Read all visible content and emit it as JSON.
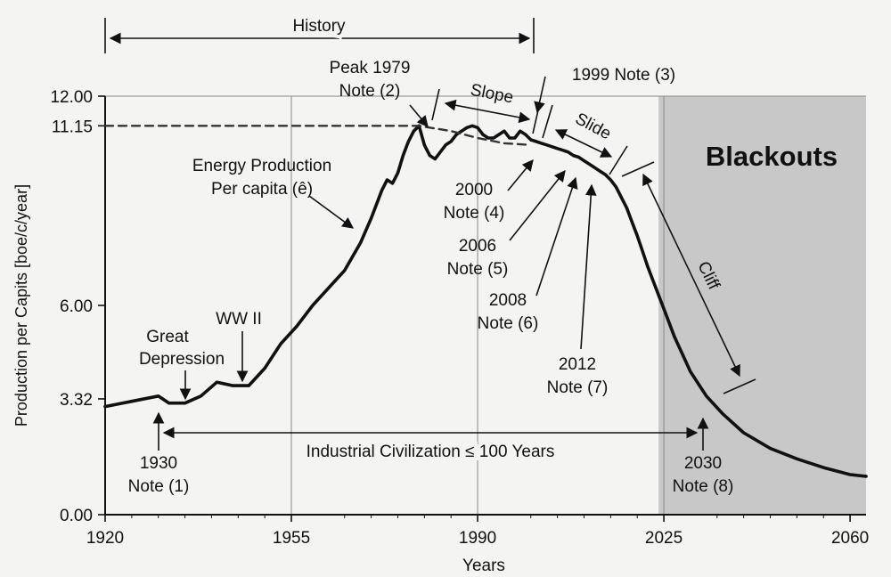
{
  "chart_data": {
    "type": "line",
    "title": "",
    "xlabel": "Years",
    "ylabel": "Production per Capits [boe/c/year]",
    "xlim": [
      1920,
      2063
    ],
    "ylim": [
      0,
      12
    ],
    "x_ticks": [
      {
        "value": 1920,
        "label": "1920"
      },
      {
        "value": 1955,
        "label": "1955"
      },
      {
        "value": 1990,
        "label": "1990"
      },
      {
        "value": 2025,
        "label": "2025"
      },
      {
        "value": 2060,
        "label": "2060"
      }
    ],
    "y_ticks": [
      {
        "value": 0,
        "label": "0.00"
      },
      {
        "value": 3.32,
        "label": "3.32"
      },
      {
        "value": 6,
        "label": "6.00"
      },
      {
        "value": 11.15,
        "label": "11.15"
      },
      {
        "value": 12,
        "label": "12.00"
      }
    ],
    "grid": "vertical lines at 1955, 1990, 2025; horizontal line at 12.00",
    "series": [
      {
        "name": "Energy Production Per capita (ê)",
        "x": [
          1920,
          1925,
          1930,
          1932,
          1935,
          1938,
          1941,
          1944,
          1947,
          1950,
          1953,
          1956,
          1959,
          1962,
          1965,
          1968,
          1970,
          1972,
          1973,
          1974,
          1975,
          1976,
          1977,
          1978,
          1979,
          1980,
          1981,
          1982,
          1983,
          1984,
          1985,
          1986,
          1987,
          1988,
          1989,
          1990,
          1991,
          1992,
          1993,
          1994,
          1995,
          1996,
          1997,
          1998,
          1999,
          2000,
          2001,
          2002,
          2003,
          2004,
          2005,
          2006,
          2007,
          2008,
          2009,
          2010,
          2011,
          2012,
          2013,
          2014,
          2015,
          2016,
          2017,
          2018,
          2019,
          2020,
          2021,
          2022,
          2023,
          2024,
          2025,
          2027,
          2030,
          2033,
          2036,
          2040,
          2045,
          2050,
          2055,
          2060,
          2063
        ],
        "y": [
          3.1,
          3.25,
          3.4,
          3.2,
          3.2,
          3.4,
          3.8,
          3.7,
          3.7,
          4.2,
          4.9,
          5.4,
          6.0,
          6.5,
          7.0,
          7.8,
          8.5,
          9.3,
          9.6,
          9.5,
          9.8,
          10.3,
          10.7,
          11.0,
          11.15,
          10.6,
          10.3,
          10.2,
          10.4,
          10.6,
          10.7,
          10.9,
          11.0,
          11.1,
          11.15,
          11.1,
          10.9,
          10.8,
          10.8,
          10.9,
          11.0,
          10.8,
          10.8,
          11.0,
          10.9,
          10.75,
          10.7,
          10.65,
          10.6,
          10.55,
          10.5,
          10.45,
          10.4,
          10.3,
          10.25,
          10.15,
          10.05,
          9.95,
          9.85,
          9.75,
          9.6,
          9.4,
          9.1,
          8.8,
          8.4,
          8.0,
          7.55,
          7.1,
          6.7,
          6.3,
          5.9,
          5.1,
          4.1,
          3.4,
          2.9,
          2.35,
          1.9,
          1.6,
          1.35,
          1.15,
          1.1
        ]
      },
      {
        "name": "",
        "style": "dashed",
        "x": [
          1920,
          1979,
          1985,
          1990,
          1995,
          2000
        ],
        "y": [
          11.15,
          11.15,
          11.0,
          10.8,
          10.65,
          10.6
        ]
      }
    ],
    "shaded_region": {
      "name": "Blackouts",
      "x_from": 2024,
      "x_to": 2063,
      "y_from": 0,
      "y_to": 12,
      "color": "#c8c8c8"
    },
    "text_labels": {
      "ylabel": "Production per Capits [boe/c/year]",
      "xlabel": "Years",
      "blackouts": "Blackouts",
      "history": "History",
      "slope": "Slope",
      "slide": "Slide",
      "cliff": "Cliff",
      "industrial": "Industrial Civilization ≤ 100 Years",
      "energy_line1": "Energy Production",
      "energy_line2": "Per capita (ê)",
      "peak1979_line1": "Peak 1979",
      "peak1979_line2": "Note (2)",
      "note1999": "1999 Note (3)",
      "great_depression_line1": "Great",
      "great_depression_line2": "Depression",
      "ww2": "WW II",
      "n2000_line1": "2000",
      "n2000_line2": "Note (4)",
      "n2006_line1": "2006",
      "n2006_line2": "Note (5)",
      "n2008_line1": "2008",
      "n2008_line2": "Note (6)",
      "n2012_line1": "2012",
      "n2012_line2": "Note (7)",
      "n1930_line1": "1930",
      "n1930_line2": "Note (1)",
      "n2030_line1": "2030",
      "n2030_line2": "Note (8)"
    },
    "colors": {
      "line": "#111111",
      "shade": "#c8c8c8",
      "background": "#f4f4f2",
      "grid": "#888888"
    }
  }
}
